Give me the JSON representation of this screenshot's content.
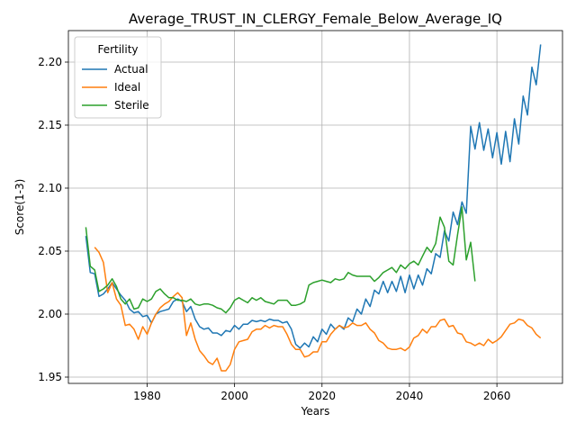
{
  "chart_data": {
    "type": "line",
    "title": "Average_TRUST_IN_CLERGY_Female_Below_Average_IQ",
    "xlabel": "Years",
    "ylabel": "Score(1-3)",
    "xlim": [
      1962,
      2075
    ],
    "ylim": [
      1.945,
      2.225
    ],
    "xticks": [
      1980,
      2000,
      2020,
      2040,
      2060
    ],
    "yticks": [
      1.95,
      2.0,
      2.05,
      2.1,
      2.15,
      2.2
    ],
    "xtick_labels": [
      "1980",
      "2000",
      "2020",
      "2040",
      "2060"
    ],
    "ytick_labels": [
      "1.95",
      "2.00",
      "2.05",
      "2.10",
      "2.15",
      "2.20"
    ],
    "grid": true,
    "legend": {
      "title": "Fertility",
      "placement": "top-left"
    },
    "series": [
      {
        "name": "Actual",
        "color": "#1f77b4",
        "x": [
          1966,
          1967,
          1968,
          1969,
          1970,
          1971,
          1972,
          1973,
          1974,
          1975,
          1976,
          1977,
          1978,
          1979,
          1980,
          1981,
          1982,
          1983,
          1984,
          1985,
          1986,
          1987,
          1988,
          1989,
          1990,
          1991,
          1992,
          1993,
          1994,
          1995,
          1996,
          1997,
          1998,
          1999,
          2000,
          2001,
          2002,
          2003,
          2004,
          2005,
          2006,
          2007,
          2008,
          2009,
          2010,
          2011,
          2012,
          2013,
          2014,
          2015,
          2016,
          2017,
          2018,
          2019,
          2020,
          2021,
          2022,
          2023,
          2024,
          2025,
          2026,
          2027,
          2028,
          2029,
          2030,
          2031,
          2032,
          2033,
          2034,
          2035,
          2036,
          2037,
          2038,
          2039,
          2040,
          2041,
          2042,
          2043,
          2044,
          2045,
          2046,
          2047,
          2048,
          2049,
          2050,
          2051,
          2052,
          2053,
          2054,
          2055,
          2056,
          2057,
          2058,
          2059,
          2060,
          2061,
          2062,
          2063,
          2064,
          2065,
          2066,
          2067,
          2068,
          2069,
          2070
        ],
        "y": [
          2.062,
          2.033,
          2.032,
          2.014,
          2.016,
          2.02,
          2.025,
          2.02,
          2.015,
          2.011,
          2.004,
          2.001,
          2.002,
          1.998,
          1.999,
          1.993,
          2.0,
          2.002,
          2.003,
          2.004,
          2.01,
          2.012,
          2.01,
          2.002,
          2.006,
          1.996,
          1.99,
          1.988,
          1.989,
          1.985,
          1.985,
          1.983,
          1.987,
          1.986,
          1.991,
          1.988,
          1.992,
          1.992,
          1.995,
          1.994,
          1.995,
          1.994,
          1.996,
          1.995,
          1.995,
          1.993,
          1.994,
          1.988,
          1.976,
          1.973,
          1.977,
          1.974,
          1.982,
          1.978,
          1.988,
          1.984,
          1.992,
          1.988,
          1.991,
          1.988,
          1.997,
          1.994,
          2.004,
          2.0,
          2.012,
          2.006,
          2.019,
          2.016,
          2.026,
          2.017,
          2.026,
          2.018,
          2.03,
          2.017,
          2.031,
          2.02,
          2.031,
          2.023,
          2.036,
          2.032,
          2.048,
          2.045,
          2.066,
          2.058,
          2.081,
          2.071,
          2.089,
          2.08,
          2.149,
          2.131,
          2.152,
          2.13,
          2.147,
          2.124,
          2.144,
          2.119,
          2.145,
          2.121,
          2.155,
          2.135,
          2.173,
          2.158,
          2.196,
          2.182,
          2.214
        ]
      },
      {
        "name": "Ideal",
        "color": "#ff7f0e",
        "x": [
          1968,
          1969,
          1970,
          1971,
          1972,
          1973,
          1974,
          1975,
          1976,
          1977,
          1978,
          1979,
          1980,
          1981,
          1982,
          1983,
          1984,
          1985,
          1986,
          1987,
          1988,
          1989,
          1990,
          1991,
          1992,
          1993,
          1994,
          1995,
          1996,
          1997,
          1998,
          1999,
          2000,
          2001,
          2002,
          2003,
          2004,
          2005,
          2006,
          2007,
          2008,
          2009,
          2010,
          2011,
          2012,
          2013,
          2014,
          2015,
          2016,
          2017,
          2018,
          2019,
          2020,
          2021,
          2022,
          2023,
          2024,
          2025,
          2026,
          2027,
          2028,
          2029,
          2030,
          2031,
          2032,
          2033,
          2034,
          2035,
          2036,
          2037,
          2038,
          2039,
          2040,
          2041,
          2042,
          2043,
          2044,
          2045,
          2046,
          2047,
          2048,
          2049,
          2050,
          2051,
          2052,
          2053,
          2054,
          2055,
          2056,
          2057,
          2058,
          2059,
          2060,
          2061,
          2062,
          2063,
          2064,
          2065,
          2066,
          2067,
          2068,
          2069,
          2070
        ],
        "y": [
          2.053,
          2.049,
          2.041,
          2.017,
          2.025,
          2.012,
          2.007,
          1.991,
          1.992,
          1.988,
          1.98,
          1.99,
          1.984,
          1.993,
          2.0,
          2.005,
          2.008,
          2.01,
          2.014,
          2.017,
          2.013,
          1.983,
          1.993,
          1.98,
          1.971,
          1.967,
          1.962,
          1.96,
          1.965,
          1.955,
          1.955,
          1.96,
          1.972,
          1.978,
          1.979,
          1.98,
          1.986,
          1.988,
          1.988,
          1.991,
          1.989,
          1.991,
          1.99,
          1.99,
          1.984,
          1.976,
          1.972,
          1.972,
          1.966,
          1.967,
          1.97,
          1.97,
          1.978,
          1.978,
          1.984,
          1.988,
          1.991,
          1.989,
          1.99,
          1.993,
          1.991,
          1.991,
          1.993,
          1.988,
          1.985,
          1.979,
          1.977,
          1.973,
          1.972,
          1.972,
          1.973,
          1.971,
          1.974,
          1.981,
          1.983,
          1.988,
          1.985,
          1.99,
          1.99,
          1.995,
          1.996,
          1.99,
          1.991,
          1.985,
          1.984,
          1.978,
          1.977,
          1.975,
          1.977,
          1.975,
          1.98,
          1.977,
          1.979,
          1.982,
          1.987,
          1.992,
          1.993,
          1.996,
          1.995,
          1.991,
          1.989,
          1.984,
          1.981
        ]
      },
      {
        "name": "Sterile",
        "color": "#2ca02c",
        "x": [
          1966,
          1967,
          1968,
          1969,
          1970,
          1971,
          1972,
          1973,
          1974,
          1975,
          1976,
          1977,
          1978,
          1979,
          1980,
          1981,
          1982,
          1983,
          1984,
          1985,
          1986,
          1987,
          1988,
          1989,
          1990,
          1991,
          1992,
          1993,
          1994,
          1995,
          1996,
          1997,
          1998,
          1999,
          2000,
          2001,
          2002,
          2003,
          2004,
          2005,
          2006,
          2007,
          2008,
          2009,
          2010,
          2011,
          2012,
          2013,
          2014,
          2015,
          2016,
          2017,
          2018,
          2019,
          2020,
          2021,
          2022,
          2023,
          2024,
          2025,
          2026,
          2027,
          2028,
          2029,
          2030,
          2031,
          2032,
          2033,
          2034,
          2035,
          2036,
          2037,
          2038,
          2039,
          2040,
          2041,
          2042,
          2043,
          2044,
          2045,
          2046,
          2047,
          2048,
          2049,
          2050,
          2051,
          2052,
          2053,
          2054,
          2055
        ],
        "y": [
          2.069,
          2.038,
          2.035,
          2.018,
          2.02,
          2.023,
          2.028,
          2.022,
          2.012,
          2.008,
          2.012,
          2.004,
          2.005,
          2.012,
          2.01,
          2.012,
          2.018,
          2.02,
          2.016,
          2.013,
          2.013,
          2.011,
          2.011,
          2.01,
          2.012,
          2.008,
          2.007,
          2.008,
          2.008,
          2.007,
          2.005,
          2.004,
          2.001,
          2.005,
          2.011,
          2.013,
          2.011,
          2.009,
          2.013,
          2.011,
          2.013,
          2.01,
          2.009,
          2.008,
          2.011,
          2.011,
          2.011,
          2.007,
          2.007,
          2.008,
          2.01,
          2.023,
          2.025,
          2.026,
          2.027,
          2.026,
          2.025,
          2.028,
          2.027,
          2.028,
          2.033,
          2.031,
          2.03,
          2.03,
          2.03,
          2.03,
          2.026,
          2.029,
          2.033,
          2.035,
          2.037,
          2.033,
          2.039,
          2.036,
          2.04,
          2.042,
          2.039,
          2.046,
          2.053,
          2.049,
          2.056,
          2.077,
          2.069,
          2.042,
          2.039,
          2.063,
          2.085,
          2.043,
          2.057,
          2.026
        ]
      }
    ]
  }
}
